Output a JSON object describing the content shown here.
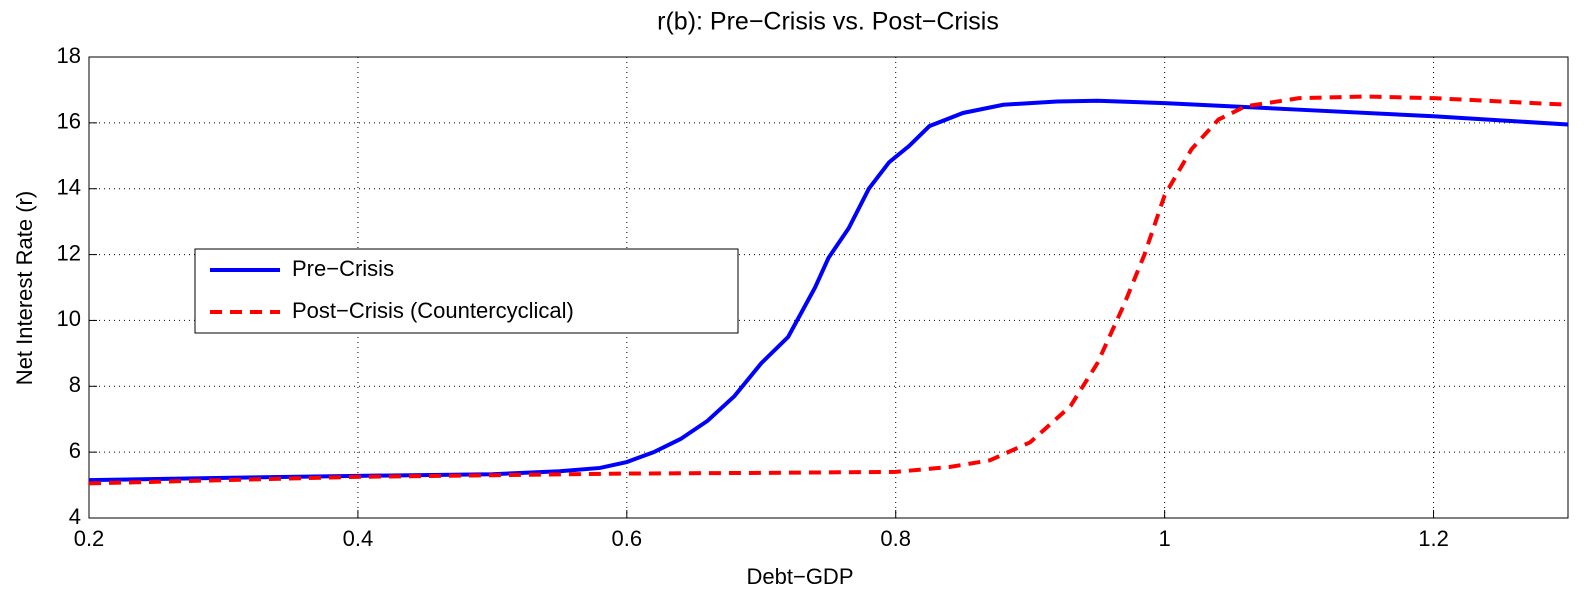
{
  "chart_data": {
    "type": "line",
    "title": "r(b): Pre−Crisis vs. Post−Crisis",
    "xlabel": "Debt−GDP",
    "ylabel": "Net Interest Rate (r)",
    "xlim": [
      0.2,
      1.3
    ],
    "xticks": [
      0.2,
      0.4,
      0.6,
      0.8,
      1,
      1.2
    ],
    "ylim": [
      4,
      18
    ],
    "yticks": [
      4,
      6,
      8,
      10,
      12,
      14,
      16,
      18
    ],
    "grid": true,
    "legend": "center left",
    "series": [
      {
        "name": "Pre−Crisis",
        "color": "#0000ff",
        "linestyle": "solid",
        "x": [
          0.2,
          0.3,
          0.4,
          0.5,
          0.55,
          0.58,
          0.6,
          0.62,
          0.64,
          0.66,
          0.68,
          0.7,
          0.72,
          0.74,
          0.75,
          0.765,
          0.78,
          0.795,
          0.81,
          0.825,
          0.85,
          0.88,
          0.92,
          0.95,
          1.0,
          1.05,
          1.1,
          1.2,
          1.3
        ],
        "values": [
          5.15,
          5.22,
          5.28,
          5.33,
          5.42,
          5.52,
          5.7,
          6.0,
          6.4,
          6.95,
          7.7,
          8.7,
          9.5,
          11.0,
          11.9,
          12.8,
          14.0,
          14.8,
          15.3,
          15.9,
          16.3,
          16.55,
          16.65,
          16.67,
          16.6,
          16.5,
          16.4,
          16.2,
          15.95
        ]
      },
      {
        "name": "Post−Crisis (Countercyclical)",
        "color": "#ff0000",
        "linestyle": "dashed",
        "x": [
          0.2,
          0.3,
          0.4,
          0.5,
          0.6,
          0.7,
          0.8,
          0.84,
          0.87,
          0.9,
          0.93,
          0.95,
          0.97,
          0.985,
          1.0,
          1.02,
          1.04,
          1.06,
          1.1,
          1.15,
          1.2,
          1.25,
          1.3
        ],
        "values": [
          5.05,
          5.15,
          5.25,
          5.3,
          5.35,
          5.37,
          5.4,
          5.55,
          5.75,
          6.3,
          7.4,
          8.7,
          10.5,
          12.0,
          13.8,
          15.2,
          16.1,
          16.5,
          16.75,
          16.8,
          16.75,
          16.65,
          16.55
        ]
      }
    ]
  }
}
